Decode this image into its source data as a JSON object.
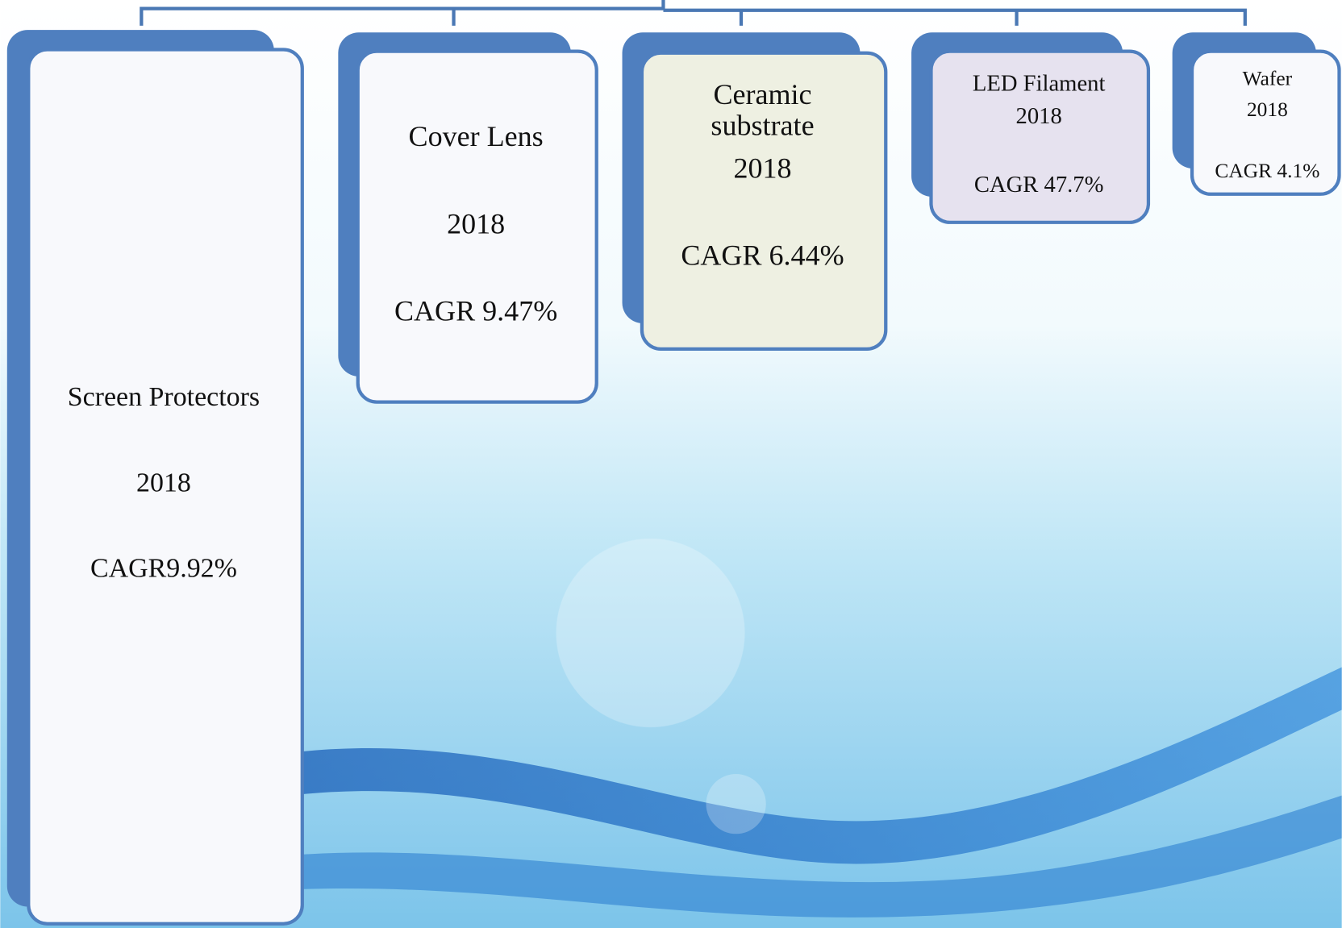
{
  "nodes": [
    {
      "lines": [
        "Screen Protectors",
        "2018",
        "CAGR9.92%"
      ]
    },
    {
      "lines": [
        "Cover Lens",
        "2018",
        "CAGR 9.47%"
      ]
    },
    {
      "lines": [
        "Ceramic",
        "substrate",
        "2018",
        "CAGR 6.44%"
      ]
    },
    {
      "lines": [
        "LED Filament",
        "2018",
        "CAGR 47.7%"
      ]
    },
    {
      "lines": [
        "Wafer",
        "2018",
        "CAGR 4.1%"
      ]
    }
  ]
}
